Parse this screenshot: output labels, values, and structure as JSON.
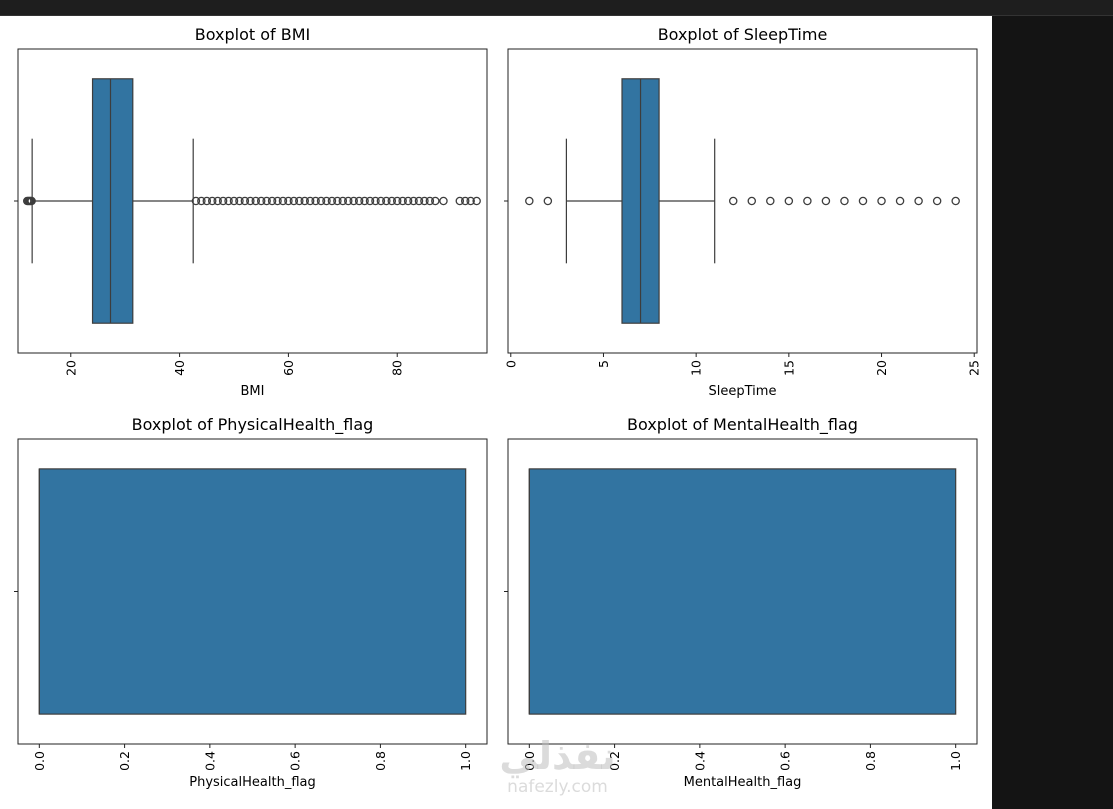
{
  "watermark": {
    "text": "نفذلي",
    "domain": "nafezly.com"
  },
  "chart_data": [
    {
      "type": "boxplot",
      "title": "Boxplot of BMI",
      "xlabel": "BMI",
      "ylabel": "",
      "xlim": [
        10.3,
        96.5
      ],
      "xticks": [
        20,
        40,
        60,
        80
      ],
      "xtick_rotation": 90,
      "color": "#3274a1",
      "box": {
        "whisker_low": 12.9,
        "q1": 24.0,
        "median": 27.3,
        "q3": 31.4,
        "whisker_high": 42.5
      },
      "outliers": [
        12.0,
        12.2,
        12.4,
        12.6,
        12.8,
        43,
        44,
        45,
        46,
        47,
        48,
        49,
        50,
        51,
        52,
        53,
        54,
        55,
        56,
        57,
        58,
        59,
        60,
        61,
        62,
        63,
        64,
        65,
        66,
        67,
        68,
        69,
        70,
        71,
        72,
        73,
        74,
        75,
        76,
        77,
        78,
        79,
        80,
        81,
        82,
        83,
        84,
        85,
        86,
        87,
        88.5,
        91.5,
        92.5,
        93.5,
        94.6
      ]
    },
    {
      "type": "boxplot",
      "title": "Boxplot of SleepTime",
      "xlabel": "SleepTime",
      "ylabel": "",
      "xlim": [
        -0.15,
        25.15
      ],
      "xticks": [
        0,
        5,
        10,
        15,
        20,
        25
      ],
      "xtick_rotation": 90,
      "color": "#3274a1",
      "box": {
        "whisker_low": 3,
        "q1": 6,
        "median": 7,
        "q3": 8,
        "whisker_high": 11
      },
      "outliers": [
        1,
        2,
        12,
        13,
        14,
        15,
        16,
        17,
        18,
        19,
        20,
        21,
        22,
        23,
        24
      ]
    },
    {
      "type": "boxplot",
      "title": "Boxplot of PhysicalHealth_flag",
      "xlabel": "PhysicalHealth_flag",
      "ylabel": "",
      "xlim": [
        -0.05,
        1.05
      ],
      "xticks": [
        0.0,
        0.2,
        0.4,
        0.6,
        0.8,
        1.0
      ],
      "xtick_rotation": 90,
      "color": "#3274a1",
      "box": {
        "whisker_low": 0,
        "q1": 0,
        "median": 0,
        "q3": 1,
        "whisker_high": 1
      },
      "outliers": []
    },
    {
      "type": "boxplot",
      "title": "Boxplot of MentalHealth_flag",
      "xlabel": "MentalHealth_flag",
      "ylabel": "",
      "xlim": [
        -0.05,
        1.05
      ],
      "xticks": [
        0.0,
        0.2,
        0.4,
        0.6,
        0.8,
        1.0
      ],
      "xtick_rotation": 90,
      "color": "#3274a1",
      "box": {
        "whisker_low": 0,
        "q1": 0,
        "median": 0,
        "q3": 1,
        "whisker_high": 1
      },
      "outliers": []
    }
  ]
}
